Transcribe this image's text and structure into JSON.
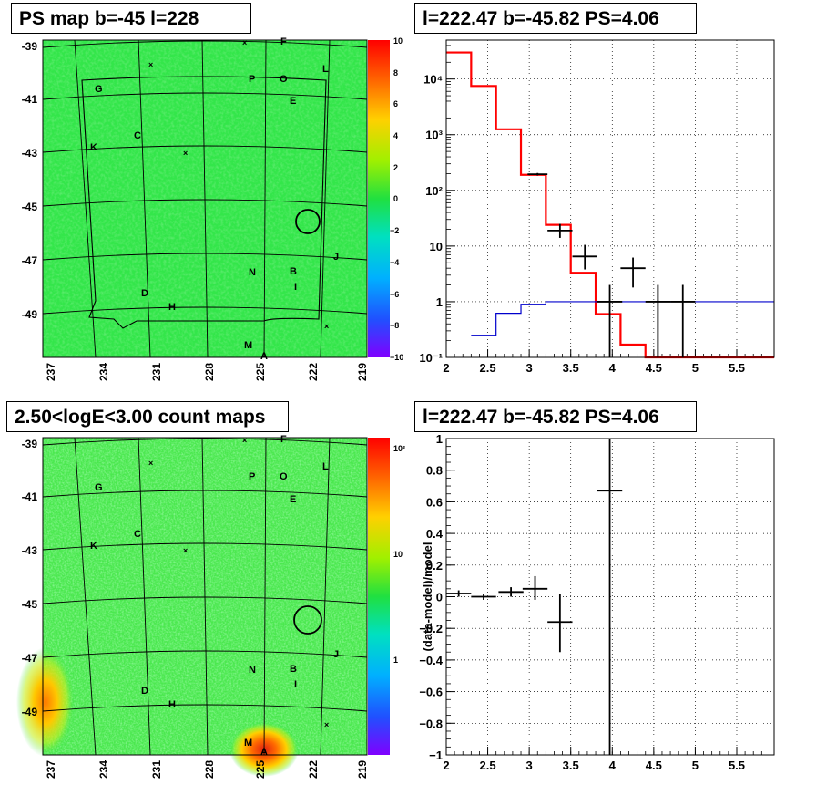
{
  "panels": {
    "tl_title": "PS map b=-45 l=228",
    "tr_title": "l=222.47 b=-45.82 PS=4.06",
    "bl_title": "2.50<logE<3.00 count maps",
    "br_title": "l=222.47 b=-45.82 PS=4.06"
  },
  "colors": {
    "map_green": "#33e64a",
    "spectrum_red": "#ff0000",
    "spectrum_blue": "#0000cc",
    "hotspot_red": "#e03010",
    "grid": "#000000"
  },
  "map_labels": {
    "y_ticks": [
      "-39",
      "-41",
      "-43",
      "-45",
      "-47",
      "-49"
    ],
    "x_ticks": [
      "237",
      "234",
      "231",
      "228",
      "225",
      "222",
      "219"
    ],
    "letters": [
      "F",
      "L",
      "P",
      "O",
      "G",
      "E",
      "C",
      "K",
      "J",
      "N",
      "B",
      "I",
      "D",
      "H",
      "M",
      "A"
    ]
  },
  "colorbar_top": {
    "labels": [
      "10",
      "8",
      "6",
      "4",
      "2",
      "0",
      "−2",
      "−4",
      "−6",
      "−8",
      "−10"
    ]
  },
  "colorbar_bottom": {
    "labels": [
      "10²",
      "10",
      "1"
    ]
  },
  "chart_data": [
    {
      "type": "line",
      "panel": "top-right",
      "title": "l=222.47 b=-45.82 PS=4.06",
      "xlim": [
        2,
        5.95
      ],
      "ylim": [
        0.1,
        50000
      ],
      "ylog": true,
      "grid": true,
      "xticks": [
        "2",
        "2.5",
        "3",
        "3.5",
        "4",
        "4.5",
        "5",
        "5.5"
      ],
      "yticks": [
        "10⁻¹",
        "1",
        "10",
        "10²",
        "10³",
        "10⁴"
      ],
      "series": [
        {
          "kind": "step",
          "color": "#ff0000",
          "edges": [
            2.0,
            2.3,
            2.6,
            2.9,
            3.2,
            3.5,
            3.8,
            4.1,
            4.4,
            5.95
          ],
          "values": [
            30000,
            7500,
            1250,
            190,
            24,
            3.3,
            0.6,
            0.17,
            0.1
          ]
        },
        {
          "kind": "step",
          "color": "#0000cc",
          "edges": [
            2.3,
            2.6,
            2.9,
            3.2,
            3.5,
            3.8,
            4.1,
            4.4,
            5.95
          ],
          "values": [
            0.25,
            0.62,
            0.9,
            1.0,
            1.0,
            1.0,
            1.0,
            1.0
          ]
        }
      ],
      "points": [
        {
          "x": 3.1,
          "y": 195,
          "xerr": 0.12,
          "ylo": 185,
          "yhi": 205
        },
        {
          "x": 3.37,
          "y": 19,
          "xerr": 0.15,
          "ylo": 14,
          "yhi": 25
        },
        {
          "x": 3.67,
          "y": 6.5,
          "xerr": 0.15,
          "ylo": 3.8,
          "yhi": 10.5
        },
        {
          "x": 4.25,
          "y": 4,
          "xerr": 0.15,
          "ylo": 1.8,
          "yhi": 6.2
        },
        {
          "x": 3.97,
          "y": 1,
          "xerr": 0.15,
          "ylo": 0.1,
          "yhi": 2.0
        },
        {
          "x": 4.55,
          "y": 1,
          "xerr": 0.15,
          "ylo": 0.1,
          "yhi": 2.0
        },
        {
          "x": 4.85,
          "y": 1,
          "xerr": 0.15,
          "ylo": 0.1,
          "yhi": 2.0
        }
      ]
    },
    {
      "type": "scatter",
      "panel": "bottom-right",
      "title": "l=222.47 b=-45.82 PS=4.06",
      "ylabel": "(data-model)/model",
      "xlim": [
        2,
        5.95
      ],
      "ylim": [
        -1,
        1
      ],
      "grid": true,
      "xticks": [
        "2",
        "2.5",
        "3",
        "3.5",
        "4",
        "4.5",
        "5",
        "5.5"
      ],
      "yticks": [
        "−1",
        "−0.8",
        "−0.6",
        "−0.4",
        "−0.2",
        "0",
        "0.2",
        "0.4",
        "0.6",
        "0.8",
        "1"
      ],
      "points": [
        {
          "x": 2.15,
          "y": 0.02,
          "xerr": 0.15,
          "ylo": 0.0,
          "yhi": 0.04
        },
        {
          "x": 2.45,
          "y": 0.0,
          "xerr": 0.15,
          "ylo": -0.02,
          "yhi": 0.02
        },
        {
          "x": 2.78,
          "y": 0.03,
          "xerr": 0.15,
          "ylo": 0.0,
          "yhi": 0.06
        },
        {
          "x": 3.07,
          "y": 0.05,
          "xerr": 0.15,
          "ylo": -0.02,
          "yhi": 0.13
        },
        {
          "x": 3.37,
          "y": -0.16,
          "xerr": 0.15,
          "ylo": -0.35,
          "yhi": 0.02
        },
        {
          "x": 3.97,
          "y": 0.67,
          "xerr": 0.15,
          "ylo": -1.0,
          "yhi": 1.0
        }
      ]
    }
  ]
}
